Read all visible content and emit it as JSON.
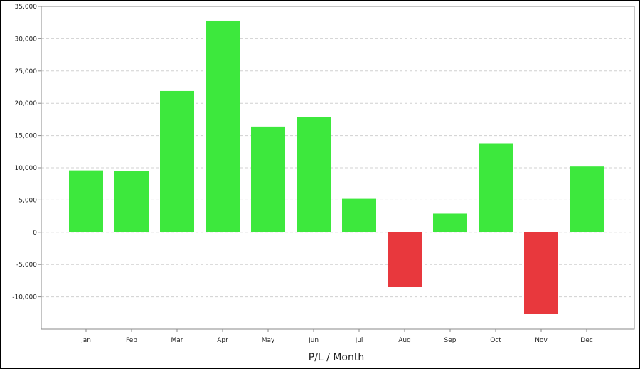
{
  "chart_data": {
    "type": "bar",
    "xlabel": "P/L / Month",
    "ylabel": "",
    "categories": [
      "Jan",
      "Feb",
      "Mar",
      "Apr",
      "May",
      "Jun",
      "Jul",
      "Aug",
      "Sep",
      "Oct",
      "Nov",
      "Dec"
    ],
    "values": [
      9600,
      9500,
      21900,
      32800,
      16400,
      17900,
      5200,
      -8400,
      2900,
      13800,
      -12600,
      10200
    ],
    "ylim": [
      -15000,
      35000
    ],
    "yticks": [
      35000,
      30000,
      25000,
      20000,
      15000,
      10000,
      5000,
      0,
      -5000,
      -10000
    ],
    "ytick_labels": [
      "35,000",
      "30,000",
      "25,000",
      "20,000",
      "15,000",
      "10,000",
      "5,000",
      "0",
      "-5,000",
      "-10,000"
    ],
    "grid": true,
    "colors": {
      "positive": "#3de83d",
      "negative": "#e8383d"
    }
  }
}
